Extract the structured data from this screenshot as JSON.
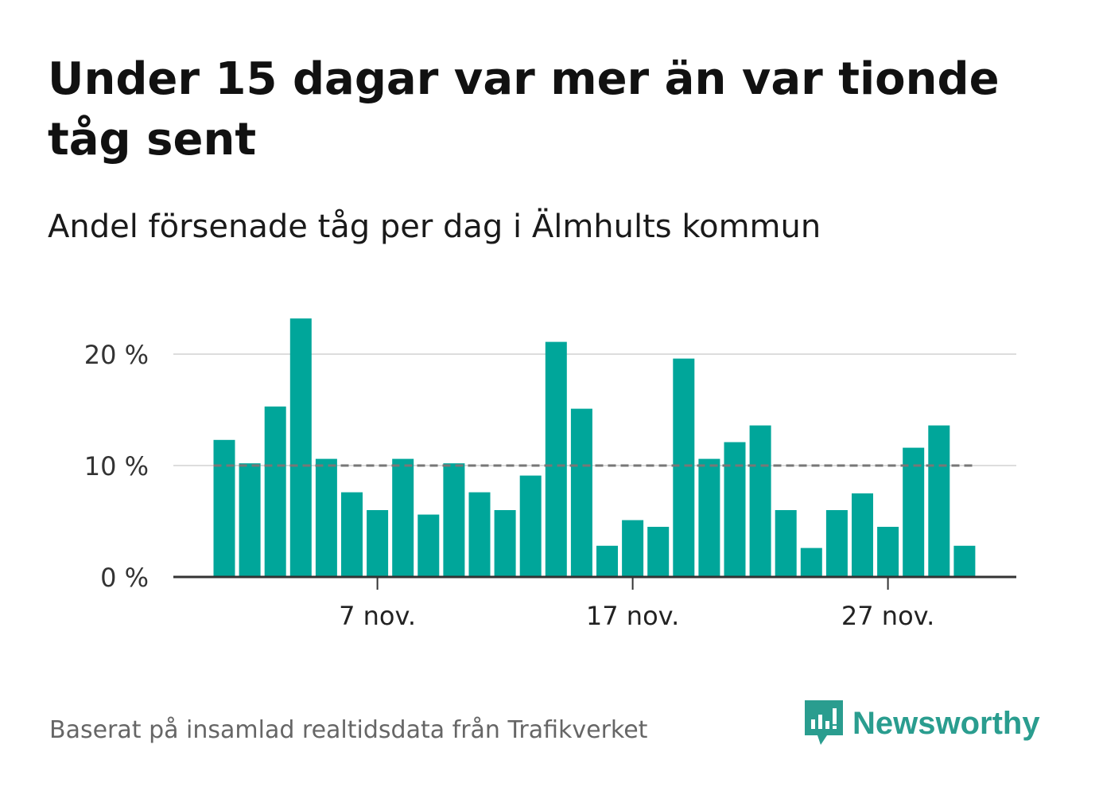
{
  "header": {
    "title": "Under 15 dagar var mer än var tionde tåg sent",
    "subtitle": "Andel försenade tåg per dag i Älmhults kommun"
  },
  "footer": {
    "source": "Baserat på insamlad realtidsdata från Trafikverket",
    "brand": "Newsworthy"
  },
  "colors": {
    "bar": "#00a69a",
    "reference_line": "#777777",
    "grid": "#dddddd",
    "brand": "#2a9d8f"
  },
  "chart_data": {
    "type": "bar",
    "x": [
      "1 nov.",
      "2 nov.",
      "3 nov.",
      "4 nov.",
      "5 nov.",
      "6 nov.",
      "7 nov.",
      "8 nov.",
      "9 nov.",
      "10 nov.",
      "11 nov.",
      "12 nov.",
      "13 nov.",
      "14 nov.",
      "15 nov.",
      "16 nov.",
      "17 nov.",
      "18 nov.",
      "19 nov.",
      "20 nov.",
      "21 nov.",
      "22 nov.",
      "23 nov.",
      "24 nov.",
      "25 nov.",
      "26 nov.",
      "27 nov.",
      "28 nov.",
      "29 nov.",
      "30 nov."
    ],
    "values": [
      12.3,
      10.2,
      15.3,
      23.2,
      10.6,
      7.6,
      6.0,
      10.6,
      5.6,
      10.2,
      7.6,
      6.0,
      9.1,
      21.1,
      15.1,
      2.8,
      5.1,
      4.5,
      19.6,
      10.6,
      12.1,
      13.6,
      6.0,
      2.6,
      6.0,
      7.5,
      4.5,
      11.6,
      13.6,
      2.8
    ],
    "y_ticks": [
      {
        "value": 0,
        "label": "0 %"
      },
      {
        "value": 10,
        "label": "10 %"
      },
      {
        "value": 20,
        "label": "20 %"
      }
    ],
    "x_ticks": [
      {
        "index": 6,
        "label": "7 nov."
      },
      {
        "index": 16,
        "label": "17 nov."
      },
      {
        "index": 26,
        "label": "27 nov."
      }
    ],
    "ylim": [
      0,
      25
    ],
    "reference_line": 10,
    "grid": true
  }
}
